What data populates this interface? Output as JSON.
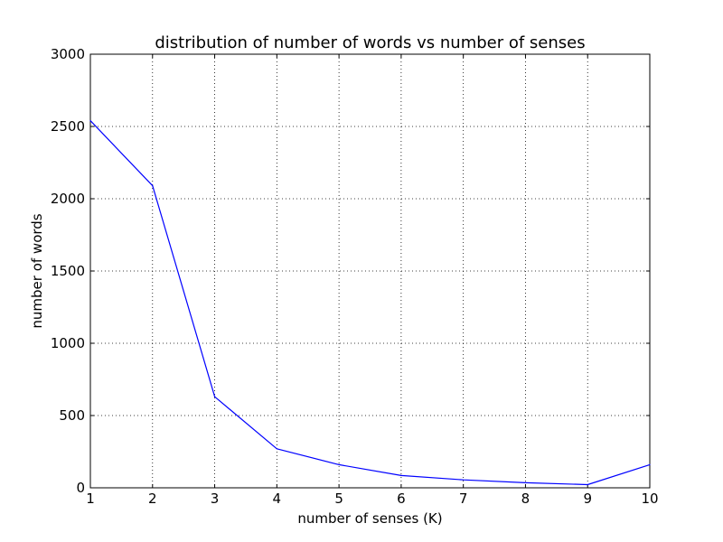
{
  "chart_data": {
    "type": "line",
    "title": "distribution of number of words vs number of senses",
    "xlabel": "number of senses (K)",
    "ylabel": "number of words",
    "x": [
      1,
      2,
      3,
      4,
      5,
      6,
      7,
      8,
      9,
      10
    ],
    "series": [
      {
        "values": [
          2540,
          2090,
          630,
          270,
          160,
          85,
          55,
          35,
          22,
          160
        ],
        "color": "#0000ff"
      }
    ],
    "xlim": [
      1,
      10
    ],
    "ylim": [
      0,
      3000
    ],
    "xticks": [
      1,
      2,
      3,
      4,
      5,
      6,
      7,
      8,
      9,
      10
    ],
    "yticks": [
      0,
      500,
      1000,
      1500,
      2000,
      2500,
      3000
    ],
    "grid": true,
    "grid_style": "dotted",
    "legend": "none"
  }
}
